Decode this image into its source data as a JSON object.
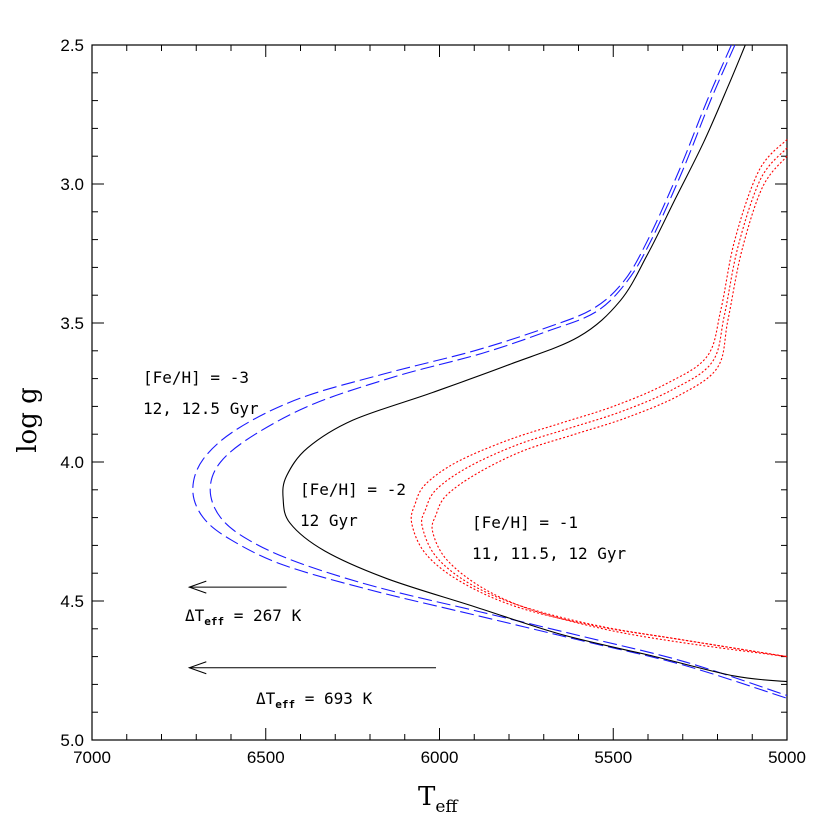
{
  "chart_data": {
    "type": "line",
    "title": "",
    "xlabel": "T",
    "xlabel_sub": "eff",
    "ylabel": "log g",
    "xlim": [
      7000,
      5000
    ],
    "ylim": [
      2.5,
      5.0
    ],
    "x_inverted": true,
    "y_inverted": true,
    "x_ticks": [
      7000,
      6500,
      6000,
      5500,
      5000
    ],
    "y_ticks": [
      2.5,
      3.0,
      3.5,
      4.0,
      4.5,
      5.0
    ],
    "x_tick_labels": [
      "7000",
      "6500",
      "6000",
      "5500",
      "5000"
    ],
    "y_tick_labels": [
      "2.5",
      "3.0",
      "3.5",
      "4.0",
      "4.5",
      "5.0"
    ],
    "grid": false,
    "series": [
      {
        "color": "#1a1aff",
        "dash": "dashed",
        "points": [
          [
            5160,
            2.5
          ],
          [
            5230,
            2.7
          ],
          [
            5310,
            2.95
          ],
          [
            5400,
            3.2
          ],
          [
            5470,
            3.35
          ],
          [
            5560,
            3.45
          ],
          [
            5700,
            3.52
          ],
          [
            5900,
            3.6
          ],
          [
            6150,
            3.68
          ],
          [
            6400,
            3.77
          ],
          [
            6580,
            3.88
          ],
          [
            6680,
            3.99
          ],
          [
            6710,
            4.1
          ],
          [
            6680,
            4.2
          ],
          [
            6600,
            4.28
          ],
          [
            6450,
            4.37
          ],
          [
            6200,
            4.46
          ],
          [
            5900,
            4.55
          ],
          [
            5600,
            4.64
          ],
          [
            5300,
            4.73
          ],
          [
            5000,
            4.85
          ]
        ]
      },
      {
        "color": "#1a1aff",
        "dash": "dashed",
        "points": [
          [
            5150,
            2.5
          ],
          [
            5220,
            2.7
          ],
          [
            5300,
            2.95
          ],
          [
            5390,
            3.2
          ],
          [
            5460,
            3.35
          ],
          [
            5550,
            3.46
          ],
          [
            5690,
            3.53
          ],
          [
            5880,
            3.61
          ],
          [
            6120,
            3.69
          ],
          [
            6360,
            3.79
          ],
          [
            6530,
            3.9
          ],
          [
            6630,
            4.0
          ],
          [
            6660,
            4.1
          ],
          [
            6630,
            4.2
          ],
          [
            6550,
            4.28
          ],
          [
            6410,
            4.36
          ],
          [
            6180,
            4.45
          ],
          [
            5880,
            4.54
          ],
          [
            5580,
            4.63
          ],
          [
            5290,
            4.72
          ],
          [
            5000,
            4.84
          ]
        ]
      },
      {
        "color": "#000000",
        "dash": "solid",
        "points": [
          [
            5120,
            2.5
          ],
          [
            5170,
            2.65
          ],
          [
            5240,
            2.85
          ],
          [
            5320,
            3.05
          ],
          [
            5400,
            3.25
          ],
          [
            5480,
            3.42
          ],
          [
            5600,
            3.55
          ],
          [
            5800,
            3.65
          ],
          [
            6020,
            3.75
          ],
          [
            6250,
            3.85
          ],
          [
            6380,
            3.95
          ],
          [
            6440,
            4.05
          ],
          [
            6450,
            4.13
          ],
          [
            6430,
            4.22
          ],
          [
            6330,
            4.32
          ],
          [
            6150,
            4.42
          ],
          [
            5900,
            4.52
          ],
          [
            5650,
            4.62
          ],
          [
            5380,
            4.7
          ],
          [
            5150,
            4.77
          ],
          [
            5000,
            4.79
          ]
        ]
      },
      {
        "color": "#ff0000",
        "dash": "dotted",
        "points": [
          [
            5000,
            2.84
          ],
          [
            5080,
            2.95
          ],
          [
            5150,
            3.2
          ],
          [
            5190,
            3.45
          ],
          [
            5230,
            3.62
          ],
          [
            5350,
            3.72
          ],
          [
            5500,
            3.8
          ],
          [
            5650,
            3.86
          ],
          [
            5800,
            3.92
          ],
          [
            5950,
            4.0
          ],
          [
            6040,
            4.08
          ],
          [
            6070,
            4.15
          ],
          [
            6080,
            4.22
          ],
          [
            6040,
            4.33
          ],
          [
            5940,
            4.43
          ],
          [
            5780,
            4.52
          ],
          [
            5550,
            4.59
          ],
          [
            5300,
            4.64
          ],
          [
            5000,
            4.7
          ]
        ]
      },
      {
        "color": "#ff0000",
        "dash": "dotted",
        "points": [
          [
            5000,
            2.87
          ],
          [
            5075,
            2.98
          ],
          [
            5140,
            3.22
          ],
          [
            5180,
            3.47
          ],
          [
            5215,
            3.64
          ],
          [
            5330,
            3.74
          ],
          [
            5480,
            3.82
          ],
          [
            5630,
            3.88
          ],
          [
            5780,
            3.94
          ],
          [
            5920,
            4.02
          ],
          [
            6010,
            4.1
          ],
          [
            6040,
            4.17
          ],
          [
            6050,
            4.23
          ],
          [
            6010,
            4.34
          ],
          [
            5910,
            4.44
          ],
          [
            5760,
            4.52
          ],
          [
            5540,
            4.59
          ],
          [
            5300,
            4.64
          ],
          [
            5000,
            4.7
          ]
        ]
      },
      {
        "color": "#ff0000",
        "dash": "dotted",
        "points": [
          [
            5000,
            2.9
          ],
          [
            5070,
            3.01
          ],
          [
            5130,
            3.24
          ],
          [
            5170,
            3.49
          ],
          [
            5200,
            3.66
          ],
          [
            5310,
            3.76
          ],
          [
            5460,
            3.84
          ],
          [
            5610,
            3.9
          ],
          [
            5760,
            3.96
          ],
          [
            5890,
            4.04
          ],
          [
            5980,
            4.12
          ],
          [
            6010,
            4.19
          ],
          [
            6020,
            4.25
          ],
          [
            5980,
            4.35
          ],
          [
            5880,
            4.45
          ],
          [
            5740,
            4.53
          ],
          [
            5530,
            4.6
          ],
          [
            5300,
            4.65
          ],
          [
            5000,
            4.7
          ]
        ]
      }
    ],
    "annotations": [
      {
        "lines": [
          "[Fe/H] = -3",
          "12, 12.5 Gyr"
        ]
      },
      {
        "lines": [
          "[Fe/H] = -2",
          "12 Gyr"
        ]
      },
      {
        "lines": [
          "[Fe/H] = -1",
          "11, 11.5, 12 Gyr"
        ]
      }
    ],
    "arrows": [
      {
        "from": [
          6440,
          4.45
        ],
        "to": [
          6720,
          4.45
        ],
        "prefix": "ΔT",
        "sub": "eff",
        "suffix": " = 267 K"
      },
      {
        "from": [
          6010,
          4.74
        ],
        "to": [
          6720,
          4.74
        ],
        "prefix": "ΔT",
        "sub": "eff",
        "suffix": " = 693 K"
      }
    ]
  }
}
